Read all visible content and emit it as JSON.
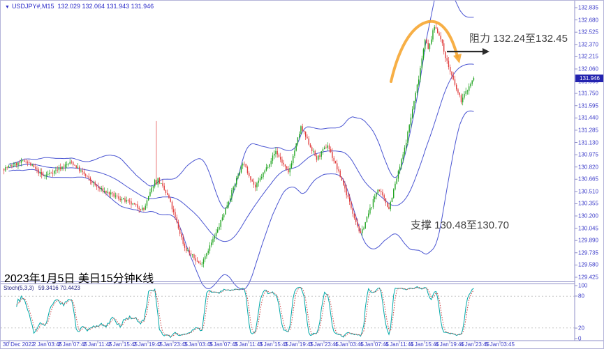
{
  "header": {
    "dropdown_icon": "▼",
    "symbol": "USDJPY#,M15",
    "ohlc": "132.029 132.064 131.943 131.946"
  },
  "annotations": {
    "resistance": "阻力 132.24至132.45",
    "support": "支撑 130.48至130.70",
    "title": "2023年1月5日 美日15分钟K线"
  },
  "price_axis": {
    "ticks": [
      "132.835",
      "132.680",
      "132.525",
      "132.370",
      "132.215",
      "132.060",
      "131.905",
      "131.750",
      "131.595",
      "131.440",
      "131.285",
      "131.130",
      "130.975",
      "130.820",
      "130.665",
      "130.510",
      "130.355",
      "130.200",
      "130.045",
      "129.890",
      "129.735",
      "129.580",
      "129.425"
    ],
    "current": "131.946"
  },
  "time_axis": {
    "labels": [
      "30 Dec 2022",
      "2 Jan 03:45",
      "2 Jan 07:45",
      "2 Jan 11:45",
      "2 Jan 15:45",
      "2 Jan 19:45",
      "2 Jan 23:45",
      "3 Jan 03:45",
      "3 Jan 07:45",
      "3 Jan 11:45",
      "3 Jan 15:45",
      "3 Jan 19:45",
      "3 Jan 23:45",
      "4 Jan 03:45",
      "4 Jan 07:45",
      "4 Jan 11:45",
      "4 Jan 15:45",
      "4 Jan 19:45",
      "4 Jan 23:45",
      "5 Jan 03:45"
    ]
  },
  "stoch_panel": {
    "label": "Stoch(5,3,3)",
    "values": "59.3416 70.4423",
    "scale": [
      "100",
      "80",
      "20",
      "0"
    ]
  },
  "colors": {
    "up": "#1fa31f",
    "down": "#e03c3c",
    "bollinger": "#4a55d2",
    "stoch_k": "#00a8a8",
    "stoch_d": "#cc4040",
    "levels": "#c4c4c4",
    "frame": "#8f8fc8",
    "axis_text": "#3a3ac8",
    "arc": "#f6a42c",
    "arrow": "#2b2b2b"
  },
  "chart_data": {
    "type": "candlestick",
    "symbol": "USDJPY#",
    "timeframe": "M15",
    "title": "2023年1月5日 美日15分钟K线",
    "ohlc_header": {
      "open": "132.029",
      "high": "132.064",
      "low": "131.943",
      "close": "131.946"
    },
    "y_range": [
      129.425,
      132.835
    ],
    "y_tick_step": 0.155,
    "x_range_labels": [
      "30 Dec 2022",
      "5 Jan 03:45"
    ],
    "candle_count": 300,
    "last_close": 131.946,
    "price_keyframes": [
      [
        0,
        130.8
      ],
      [
        14,
        130.9
      ],
      [
        25,
        130.7
      ],
      [
        43,
        130.88
      ],
      [
        60,
        130.55
      ],
      [
        76,
        130.4
      ],
      [
        89,
        130.28
      ],
      [
        97,
        130.7
      ],
      [
        105,
        130.42
      ],
      [
        115,
        129.8
      ],
      [
        125,
        129.58
      ],
      [
        136,
        130.02
      ],
      [
        152,
        130.88
      ],
      [
        160,
        130.56
      ],
      [
        173,
        131.02
      ],
      [
        181,
        130.74
      ],
      [
        189,
        131.32
      ],
      [
        199,
        130.92
      ],
      [
        206,
        131.1
      ],
      [
        216,
        130.6
      ],
      [
        227,
        129.96
      ],
      [
        238,
        130.55
      ],
      [
        245,
        130.3
      ],
      [
        255,
        131.05
      ],
      [
        264,
        131.95
      ],
      [
        268,
        132.45
      ],
      [
        270,
        132.3
      ],
      [
        274,
        132.6
      ],
      [
        277,
        132.5
      ],
      [
        282,
        132.15
      ],
      [
        287,
        131.85
      ],
      [
        291,
        131.66
      ],
      [
        295,
        131.8
      ],
      [
        299,
        131.946
      ]
    ],
    "spike": {
      "index": 97,
      "extra_high": 0.7
    },
    "bollinger": {
      "period": 34,
      "deviation": 2
    },
    "stochastic": {
      "k": 5,
      "d": 3,
      "slowing": 3,
      "k_last": 59.3416,
      "d_last": 70.4423,
      "levels": [
        80,
        20
      ]
    },
    "resistance_zone": [
      132.24,
      132.45
    ],
    "support_zone": [
      130.48,
      130.7
    ]
  }
}
